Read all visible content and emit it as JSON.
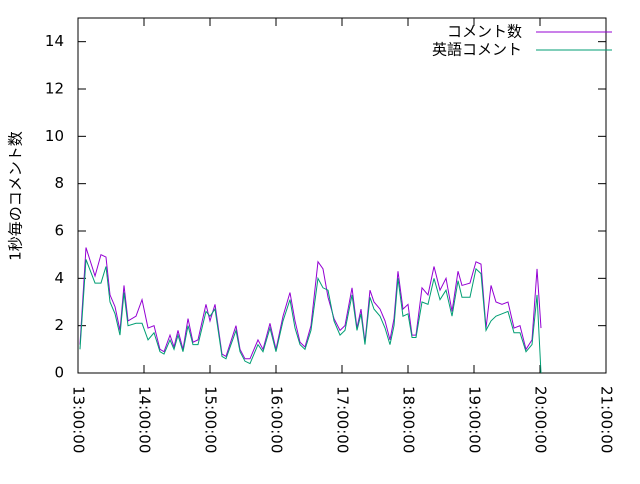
{
  "chart_data": {
    "type": "line",
    "ylabel": "1秒毎のコメント数",
    "x": [
      13.03,
      13.121,
      13.258,
      13.348,
      13.424,
      13.485,
      13.561,
      13.636,
      13.697,
      13.758,
      13.879,
      13.97,
      14.061,
      14.152,
      14.242,
      14.303,
      14.394,
      14.455,
      14.515,
      14.591,
      14.667,
      14.742,
      14.818,
      14.939,
      15.0,
      15.076,
      15.182,
      15.242,
      15.394,
      15.455,
      15.53,
      15.606,
      15.727,
      15.803,
      15.909,
      16.0,
      16.106,
      16.212,
      16.288,
      16.364,
      16.439,
      16.53,
      16.636,
      16.712,
      16.788,
      16.879,
      16.97,
      17.045,
      17.152,
      17.227,
      17.288,
      17.348,
      17.424,
      17.485,
      17.576,
      17.652,
      17.727,
      17.788,
      17.848,
      17.924,
      18.0,
      18.061,
      18.121,
      18.212,
      18.303,
      18.394,
      18.485,
      18.576,
      18.667,
      18.758,
      18.818,
      18.939,
      19.03,
      19.106,
      19.182,
      19.258,
      19.333,
      19.424,
      19.515,
      19.606,
      19.697,
      19.788,
      19.879,
      19.955,
      20.015
    ],
    "series": [
      {
        "name": "コメント数",
        "color": "#9400d3",
        "values": [
          1.2,
          5.3,
          4.1,
          5.0,
          4.9,
          3.3,
          2.8,
          1.8,
          3.7,
          2.2,
          2.4,
          3.1,
          1.9,
          2.0,
          1.0,
          0.9,
          1.6,
          1.1,
          1.8,
          1.0,
          2.3,
          1.3,
          1.4,
          2.9,
          2.2,
          2.9,
          0.8,
          0.7,
          2.0,
          1.0,
          0.6,
          0.6,
          1.4,
          1.0,
          2.1,
          1.0,
          2.4,
          3.4,
          2.2,
          1.3,
          1.1,
          2.0,
          4.7,
          4.4,
          3.2,
          2.3,
          1.8,
          2.0,
          3.6,
          1.9,
          2.7,
          1.3,
          3.5,
          3.0,
          2.7,
          2.2,
          1.4,
          2.3,
          4.3,
          2.7,
          2.9,
          1.6,
          1.6,
          3.6,
          3.3,
          4.5,
          3.5,
          4.0,
          2.6,
          4.3,
          3.7,
          3.8,
          4.7,
          4.6,
          1.9,
          3.7,
          3.0,
          2.9,
          3.0,
          1.9,
          2.0,
          1.0,
          1.4,
          4.4,
          1.9
        ]
      },
      {
        "name": "英語コメント",
        "color": "#009e73",
        "values": [
          1.0,
          4.8,
          3.8,
          3.8,
          4.5,
          3.0,
          2.5,
          1.6,
          3.4,
          2.0,
          2.1,
          2.1,
          1.4,
          1.7,
          0.9,
          0.8,
          1.4,
          1.0,
          1.6,
          0.9,
          2.0,
          1.2,
          1.2,
          2.6,
          2.4,
          2.7,
          0.7,
          0.6,
          1.8,
          0.9,
          0.5,
          0.4,
          1.2,
          0.9,
          1.9,
          0.9,
          2.2,
          3.1,
          1.9,
          1.2,
          1.0,
          1.8,
          4.0,
          3.6,
          3.5,
          2.2,
          1.6,
          1.8,
          3.3,
          1.8,
          2.5,
          1.2,
          3.2,
          2.7,
          2.4,
          1.9,
          1.2,
          2.0,
          4.0,
          2.4,
          2.5,
          1.5,
          1.5,
          3.0,
          2.9,
          4.0,
          3.1,
          3.5,
          2.4,
          3.9,
          3.2,
          3.2,
          4.4,
          4.2,
          1.8,
          2.2,
          2.4,
          2.5,
          2.6,
          1.7,
          1.7,
          0.9,
          1.2,
          3.3,
          0.0
        ]
      }
    ],
    "xlim": [
      13,
      21
    ],
    "xticks": [
      {
        "value": 13,
        "label": "13:00:00"
      },
      {
        "value": 14,
        "label": "14:00:00"
      },
      {
        "value": 15,
        "label": "15:00:00"
      },
      {
        "value": 16,
        "label": "16:00:00"
      },
      {
        "value": 17,
        "label": "17:00:00"
      },
      {
        "value": 18,
        "label": "18:00:00"
      },
      {
        "value": 19,
        "label": "19:00:00"
      },
      {
        "value": 20,
        "label": "20:00:00"
      },
      {
        "value": 21,
        "label": "21:00:00"
      }
    ],
    "ylim": [
      0,
      15
    ],
    "yticks": [
      0,
      2,
      4,
      6,
      8,
      10,
      12,
      14
    ],
    "legend": "top-right"
  }
}
